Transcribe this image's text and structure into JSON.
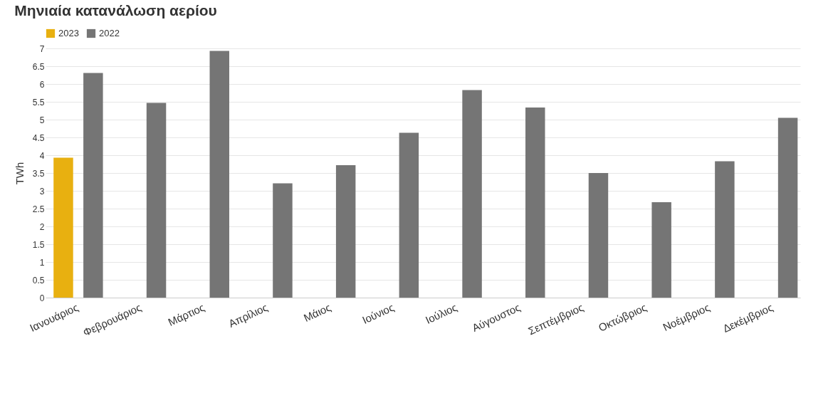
{
  "chart_data": {
    "type": "bar",
    "title": "Μηνιαία κατανάλωση αερίου",
    "ylabel": "TWh",
    "categories": [
      "Ιανουάριος",
      "Φεβρουάριος",
      "Μάρτιος",
      "Απρίλιος",
      "Μάιος",
      "Ιούνιος",
      "Ιούλιος",
      "Αύγουστος",
      "Σεπτέμβριος",
      "Οκτώβριος",
      "Νοέμβριος",
      "Δεκέμβριος"
    ],
    "series": [
      {
        "name": "2023",
        "color": "#e8b010",
        "values": [
          3.93,
          null,
          null,
          null,
          null,
          null,
          null,
          null,
          null,
          null,
          null,
          null
        ]
      },
      {
        "name": "2022",
        "color": "#757575",
        "values": [
          6.31,
          5.47,
          6.93,
          3.21,
          3.72,
          4.63,
          5.83,
          5.34,
          3.5,
          2.68,
          3.83,
          5.05
        ]
      }
    ],
    "ylim": [
      0,
      7
    ],
    "yticks": [
      0,
      0.5,
      1,
      1.5,
      2,
      2.5,
      3,
      3.5,
      4,
      4.5,
      5,
      5.5,
      6,
      6.5,
      7
    ],
    "grid": "y",
    "legend": "top left"
  }
}
